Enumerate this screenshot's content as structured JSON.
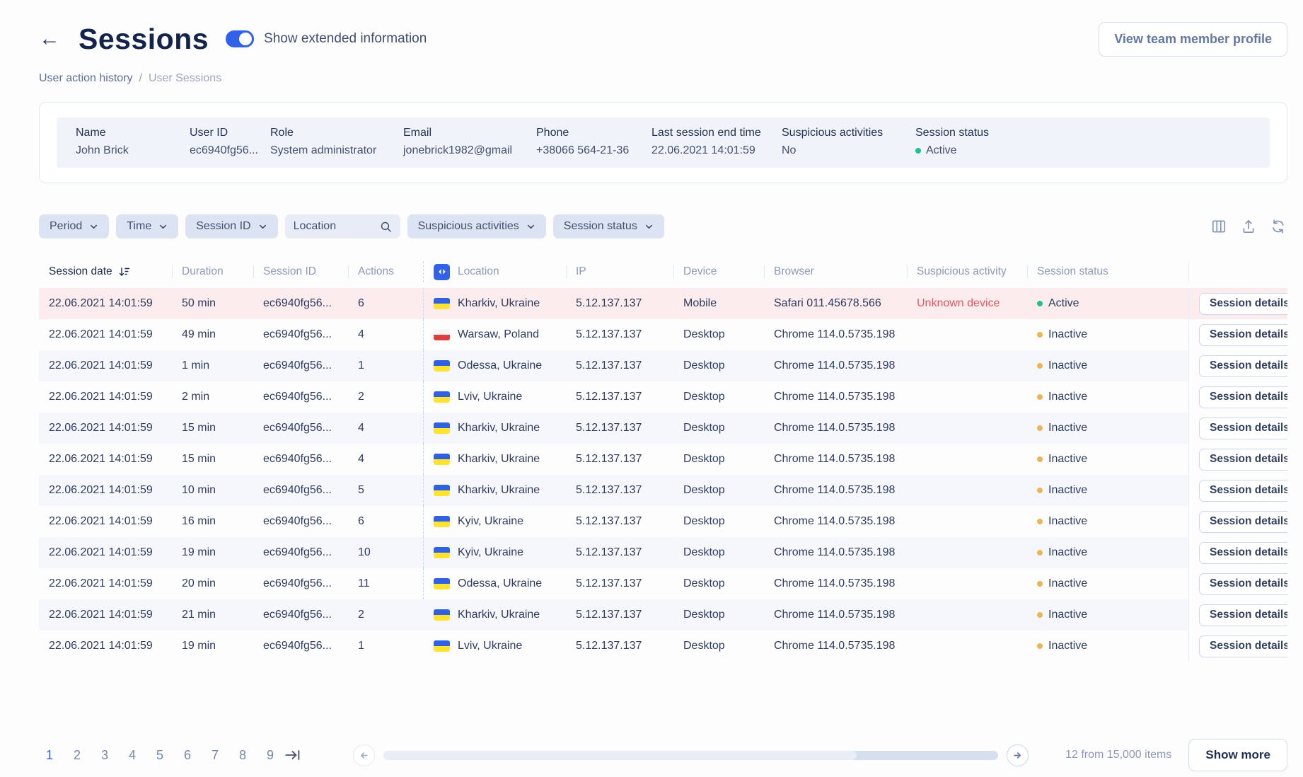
{
  "page": {
    "title": "Sessions",
    "toggle_label": "Show extended information",
    "toggle_on": true,
    "profile_button_label": "View team member profile"
  },
  "breadcrumb": {
    "parent": "User action history",
    "separator": "/",
    "current": "User Sessions"
  },
  "user_card": {
    "fields": [
      {
        "label": "Name",
        "value": "John Brick"
      },
      {
        "label": "User ID",
        "value": "ec6940fg56..."
      },
      {
        "label": "Role",
        "value": "System administrator"
      },
      {
        "label": "Email",
        "value": "jonebrick1982@gmail"
      },
      {
        "label": "Phone",
        "value": "+38066 564-21-36"
      },
      {
        "label": "Last session end time",
        "value": "22.06.2021 14:01:59"
      },
      {
        "label": "Suspicious activities",
        "value": "No"
      },
      {
        "label": "Session status",
        "value": "Active",
        "status_type": "active"
      }
    ]
  },
  "filters": {
    "items": [
      {
        "label": "Period",
        "type": "dropdown"
      },
      {
        "label": "Time",
        "type": "dropdown"
      },
      {
        "label": "Session ID",
        "type": "dropdown"
      },
      {
        "placeholder": "Location",
        "type": "search"
      },
      {
        "label": "Suspicious activities",
        "type": "dropdown"
      },
      {
        "label": "Session status",
        "type": "dropdown"
      }
    ],
    "toolbar_icons": [
      "columns",
      "export",
      "refresh"
    ]
  },
  "table": {
    "columns": [
      "Session date",
      "Duration",
      "Session ID",
      "Actions",
      "Location",
      "IP",
      "Device",
      "Browser",
      "Suspicious activity",
      "Session status"
    ],
    "sorted_by": "Session date",
    "sort_direction": "desc",
    "details_button_label": "Session details",
    "rows": [
      {
        "date": "22.06.2021 14:01:59",
        "duration": "50 min",
        "session_id": "ec6940fg56...",
        "actions": "6",
        "country": "ua",
        "location": "Kharkiv, Ukraine",
        "ip": "5.12.137.137",
        "device": "Mobile",
        "browser": "Safari 011.45678.566",
        "suspicious_activity": "Unknown device",
        "status": "Active",
        "status_type": "active",
        "highlighted": true
      },
      {
        "date": "22.06.2021 14:01:59",
        "duration": "49 min",
        "session_id": "ec6940fg56...",
        "actions": "4",
        "country": "pl",
        "location": "Warsaw, Poland",
        "ip": "5.12.137.137",
        "device": "Desktop",
        "browser": "Chrome 114.0.5735.198",
        "suspicious_activity": "",
        "status": "Inactive",
        "status_type": "inactive",
        "highlighted": false
      },
      {
        "date": "22.06.2021 14:01:59",
        "duration": "1 min",
        "session_id": "ec6940fg56...",
        "actions": "1",
        "country": "ua",
        "location": "Odessa, Ukraine",
        "ip": "5.12.137.137",
        "device": "Desktop",
        "browser": "Chrome 114.0.5735.198",
        "suspicious_activity": "",
        "status": "Inactive",
        "status_type": "inactive",
        "highlighted": false
      },
      {
        "date": "22.06.2021 14:01:59",
        "duration": "2 min",
        "session_id": "ec6940fg56...",
        "actions": "2",
        "country": "ua",
        "location": "Lviv, Ukraine",
        "ip": "5.12.137.137",
        "device": "Desktop",
        "browser": "Chrome 114.0.5735.198",
        "suspicious_activity": "",
        "status": "Inactive",
        "status_type": "inactive",
        "highlighted": false
      },
      {
        "date": "22.06.2021 14:01:59",
        "duration": "15 min",
        "session_id": "ec6940fg56...",
        "actions": "4",
        "country": "ua",
        "location": "Kharkiv, Ukraine",
        "ip": "5.12.137.137",
        "device": "Desktop",
        "browser": "Chrome 114.0.5735.198",
        "suspicious_activity": "",
        "status": "Inactive",
        "status_type": "inactive",
        "highlighted": false
      },
      {
        "date": "22.06.2021 14:01:59",
        "duration": "15 min",
        "session_id": "ec6940fg56...",
        "actions": "4",
        "country": "ua",
        "location": "Kharkiv, Ukraine",
        "ip": "5.12.137.137",
        "device": "Desktop",
        "browser": "Chrome 114.0.5735.198",
        "suspicious_activity": "",
        "status": "Inactive",
        "status_type": "inactive",
        "highlighted": false
      },
      {
        "date": "22.06.2021 14:01:59",
        "duration": "10 min",
        "session_id": "ec6940fg56...",
        "actions": "5",
        "country": "ua",
        "location": "Kharkiv, Ukraine",
        "ip": "5.12.137.137",
        "device": "Desktop",
        "browser": "Chrome 114.0.5735.198",
        "suspicious_activity": "",
        "status": "Inactive",
        "status_type": "inactive",
        "highlighted": false
      },
      {
        "date": "22.06.2021 14:01:59",
        "duration": "16 min",
        "session_id": "ec6940fg56...",
        "actions": "6",
        "country": "ua",
        "location": "Kyiv, Ukraine",
        "ip": "5.12.137.137",
        "device": "Desktop",
        "browser": "Chrome 114.0.5735.198",
        "suspicious_activity": "",
        "status": "Inactive",
        "status_type": "inactive",
        "highlighted": false
      },
      {
        "date": "22.06.2021 14:01:59",
        "duration": "19 min",
        "session_id": "ec6940fg56...",
        "actions": "10",
        "country": "ua",
        "location": "Kyiv, Ukraine",
        "ip": "5.12.137.137",
        "device": "Desktop",
        "browser": "Chrome 114.0.5735.198",
        "suspicious_activity": "",
        "status": "Inactive",
        "status_type": "inactive",
        "highlighted": false
      },
      {
        "date": "22.06.2021 14:01:59",
        "duration": "20 min",
        "session_id": "ec6940fg56...",
        "actions": "11",
        "country": "ua",
        "location": "Odessa, Ukraine",
        "ip": "5.12.137.137",
        "device": "Desktop",
        "browser": "Chrome 114.0.5735.198",
        "suspicious_activity": "",
        "status": "Inactive",
        "status_type": "inactive",
        "highlighted": false
      },
      {
        "date": "22.06.2021 14:01:59",
        "duration": "21 min",
        "session_id": "ec6940fg56...",
        "actions": "2",
        "country": "ua",
        "location": "Kharkiv, Ukraine",
        "ip": "5.12.137.137",
        "device": "Desktop",
        "browser": "Chrome 114.0.5735.198",
        "suspicious_activity": "",
        "status": "Inactive",
        "status_type": "inactive",
        "highlighted": false
      },
      {
        "date": "22.06.2021 14:01:59",
        "duration": "19 min",
        "session_id": "ec6940fg56...",
        "actions": "1",
        "country": "ua",
        "location": "Lviv, Ukraine",
        "ip": "5.12.137.137",
        "device": "Desktop",
        "browser": "Chrome 114.0.5735.198",
        "suspicious_activity": "",
        "status": "Inactive",
        "status_type": "inactive",
        "highlighted": false
      }
    ]
  },
  "pagination": {
    "pages": [
      "1",
      "2",
      "3",
      "4",
      "5",
      "6",
      "7",
      "8",
      "9"
    ],
    "current_page": "1",
    "items_label": "12 from 15,000 items",
    "show_more_label": "Show more"
  },
  "colors": {
    "accent": "#2F62E9",
    "row_highlight": "#FCECEE",
    "alert_text": "#E8555E",
    "status_active": "#1EC28B",
    "status_inactive": "#EDB357"
  }
}
